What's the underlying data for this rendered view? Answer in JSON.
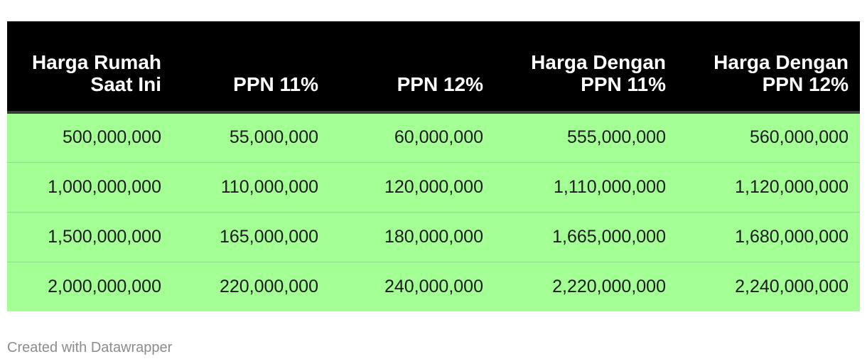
{
  "chart_data": {
    "type": "table",
    "header_background": "#000000",
    "header_text_color": "#ffffff",
    "row_background": "#a3ff93",
    "columns": [
      "Harga Rumah Saat Ini",
      "PPN 11%",
      "PPN 12%",
      "Harga Dengan PPN 11%",
      "Harga Dengan PPN 12%"
    ],
    "rows": [
      [
        "500,000,000",
        "55,000,000",
        "60,000,000",
        "555,000,000",
        "560,000,000"
      ],
      [
        "1,000,000,000",
        "110,000,000",
        "120,000,000",
        "1,110,000,000",
        "1,120,000,000"
      ],
      [
        "1,500,000,000",
        "165,000,000",
        "180,000,000",
        "1,665,000,000",
        "1,680,000,000"
      ],
      [
        "2,000,000,000",
        "220,000,000",
        "240,000,000",
        "2,220,000,000",
        "2,240,000,000"
      ]
    ]
  },
  "footer": {
    "credit": "Created with Datawrapper"
  }
}
